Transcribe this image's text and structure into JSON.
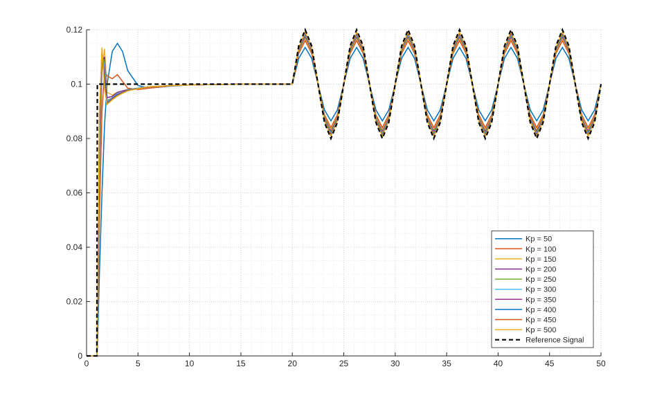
{
  "chart_data": {
    "type": "line",
    "x": [
      0,
      1,
      1.05,
      1.25,
      1.5,
      1.75,
      2,
      2.5,
      3,
      3.5,
      4,
      5,
      6,
      8,
      10,
      15,
      20,
      20.625,
      21.25,
      21.875,
      22.5,
      23.125,
      23.75,
      24.375,
      25,
      25.625,
      26.25,
      26.875,
      27.5,
      28.125,
      28.75,
      29.375,
      30,
      30.625,
      31.25,
      31.875,
      32.5,
      33.125,
      33.75,
      34.375,
      35,
      35.625,
      36.25,
      36.875,
      37.5,
      38.125,
      38.75,
      39.375,
      40,
      40.625,
      41.25,
      41.875,
      42.5,
      43.125,
      43.75,
      44.375,
      45,
      45.625,
      46.25,
      46.875,
      47.5,
      48.125,
      48.75,
      49.375,
      50
    ],
    "series": [
      {
        "name": "Kp = 50",
        "color": "#0072BD",
        "values": [
          0,
          0,
          0.002,
          0.03,
          0.06,
          0.085,
          0.1,
          0.112,
          0.115,
          0.112,
          0.105,
          0.0995,
          0.0985,
          0.0992,
          0.0997,
          0.1,
          0.1,
          0.1095,
          0.1135,
          0.1095,
          0.1,
          0.0905,
          0.0865,
          0.0905,
          0.1,
          0.1095,
          0.1135,
          0.1095,
          0.1,
          0.0905,
          0.0865,
          0.0905,
          0.1,
          0.1095,
          0.1135,
          0.1095,
          0.1,
          0.0905,
          0.0865,
          0.0905,
          0.1,
          0.1095,
          0.1135,
          0.1095,
          0.1,
          0.0905,
          0.0865,
          0.0905,
          0.1,
          0.1095,
          0.1135,
          0.1095,
          0.1,
          0.0905,
          0.0865,
          0.0905,
          0.1,
          0.1095,
          0.1135,
          0.1095,
          0.1,
          0.0905,
          0.0865,
          0.0905,
          0.1
        ]
      },
      {
        "name": "Kp = 100",
        "color": "#D95319",
        "values": [
          0,
          0,
          0.004,
          0.05,
          0.09,
          0.105,
          0.103,
          0.102,
          0.1035,
          0.101,
          0.0985,
          0.098,
          0.0985,
          0.0993,
          0.0997,
          0.1,
          0.1,
          0.1113,
          0.116,
          0.1113,
          0.1,
          0.0887,
          0.084,
          0.0887,
          0.1,
          0.1113,
          0.116,
          0.1113,
          0.1,
          0.0887,
          0.084,
          0.0887,
          0.1,
          0.1113,
          0.116,
          0.1113,
          0.1,
          0.0887,
          0.084,
          0.0887,
          0.1,
          0.1113,
          0.116,
          0.1113,
          0.1,
          0.0887,
          0.084,
          0.0887,
          0.1,
          0.1113,
          0.116,
          0.1113,
          0.1,
          0.0887,
          0.084,
          0.0887,
          0.1,
          0.1113,
          0.116,
          0.1113,
          0.1,
          0.0887,
          0.084,
          0.0887,
          0.1
        ]
      },
      {
        "name": "Kp = 150",
        "color": "#EDB120",
        "values": [
          0,
          0,
          0.006,
          0.065,
          0.105,
          0.113,
          0.097,
          0.096,
          0.097,
          0.0975,
          0.098,
          0.0985,
          0.099,
          0.0994,
          0.0997,
          0.1,
          0.1,
          0.112,
          0.117,
          0.112,
          0.1,
          0.088,
          0.083,
          0.088,
          0.1,
          0.112,
          0.117,
          0.112,
          0.1,
          0.088,
          0.083,
          0.088,
          0.1,
          0.112,
          0.117,
          0.112,
          0.1,
          0.088,
          0.083,
          0.088,
          0.1,
          0.112,
          0.117,
          0.112,
          0.1,
          0.088,
          0.083,
          0.088,
          0.1,
          0.112,
          0.117,
          0.112,
          0.1,
          0.088,
          0.083,
          0.088,
          0.1,
          0.112,
          0.117,
          0.112,
          0.1,
          0.088,
          0.083,
          0.088,
          0.1
        ]
      },
      {
        "name": "Kp = 200",
        "color": "#7E2F8E",
        "values": [
          0,
          0,
          0.007,
          0.07,
          0.108,
          0.11,
          0.095,
          0.0955,
          0.097,
          0.0975,
          0.098,
          0.0985,
          0.099,
          0.0994,
          0.0997,
          0.1,
          0.1,
          0.1124,
          0.1175,
          0.1124,
          0.1,
          0.0876,
          0.0825,
          0.0876,
          0.1,
          0.1124,
          0.1175,
          0.1124,
          0.1,
          0.0876,
          0.0825,
          0.0876,
          0.1,
          0.1124,
          0.1175,
          0.1124,
          0.1,
          0.0876,
          0.0825,
          0.0876,
          0.1,
          0.1124,
          0.1175,
          0.1124,
          0.1,
          0.0876,
          0.0825,
          0.0876,
          0.1,
          0.1124,
          0.1175,
          0.1124,
          0.1,
          0.0876,
          0.0825,
          0.0876,
          0.1,
          0.1124,
          0.1175,
          0.1124,
          0.1,
          0.0876,
          0.0825,
          0.0876,
          0.1
        ]
      },
      {
        "name": "Kp = 250",
        "color": "#77AC30",
        "values": [
          0,
          0,
          0.008,
          0.075,
          0.11,
          0.108,
          0.094,
          0.095,
          0.0965,
          0.097,
          0.098,
          0.0985,
          0.099,
          0.0994,
          0.0997,
          0.1,
          0.1,
          0.1127,
          0.118,
          0.1127,
          0.1,
          0.0873,
          0.082,
          0.0873,
          0.1,
          0.1127,
          0.118,
          0.1127,
          0.1,
          0.0873,
          0.082,
          0.0873,
          0.1,
          0.1127,
          0.118,
          0.1127,
          0.1,
          0.0873,
          0.082,
          0.0873,
          0.1,
          0.1127,
          0.118,
          0.1127,
          0.1,
          0.0873,
          0.082,
          0.0873,
          0.1,
          0.1127,
          0.118,
          0.1127,
          0.1,
          0.0873,
          0.082,
          0.0873,
          0.1,
          0.1127,
          0.118,
          0.1127,
          0.1,
          0.0873,
          0.082,
          0.0873,
          0.1
        ]
      },
      {
        "name": "Kp = 300",
        "color": "#4DBEEE",
        "values": [
          0,
          0,
          0.009,
          0.08,
          0.111,
          0.106,
          0.0935,
          0.095,
          0.0965,
          0.097,
          0.0978,
          0.0985,
          0.099,
          0.0994,
          0.0997,
          0.1,
          0.1,
          0.1129,
          0.1183,
          0.1129,
          0.1,
          0.0871,
          0.0817,
          0.0871,
          0.1,
          0.1129,
          0.1183,
          0.1129,
          0.1,
          0.0871,
          0.0817,
          0.0871,
          0.1,
          0.1129,
          0.1183,
          0.1129,
          0.1,
          0.0871,
          0.0817,
          0.0871,
          0.1,
          0.1129,
          0.1183,
          0.1129,
          0.1,
          0.0871,
          0.0817,
          0.0871,
          0.1,
          0.1129,
          0.1183,
          0.1129,
          0.1,
          0.0871,
          0.0817,
          0.0871,
          0.1,
          0.1129,
          0.1183,
          0.1129,
          0.1,
          0.0871,
          0.0817,
          0.0871,
          0.1
        ]
      },
      {
        "name": "Kp = 350",
        "color": "#A22C9C",
        "values": [
          0,
          0,
          0.01,
          0.083,
          0.112,
          0.104,
          0.093,
          0.0948,
          0.0962,
          0.097,
          0.0978,
          0.0984,
          0.099,
          0.0994,
          0.0997,
          0.1,
          0.1,
          0.1132,
          0.1186,
          0.1132,
          0.1,
          0.0868,
          0.0814,
          0.0868,
          0.1,
          0.1132,
          0.1186,
          0.1132,
          0.1,
          0.0868,
          0.0814,
          0.0868,
          0.1,
          0.1132,
          0.1186,
          0.1132,
          0.1,
          0.0868,
          0.0814,
          0.0868,
          0.1,
          0.1132,
          0.1186,
          0.1132,
          0.1,
          0.0868,
          0.0814,
          0.0868,
          0.1,
          0.1132,
          0.1186,
          0.1132,
          0.1,
          0.0868,
          0.0814,
          0.0868,
          0.1,
          0.1132,
          0.1186,
          0.1132,
          0.1,
          0.0868,
          0.0814,
          0.0868,
          0.1
        ]
      },
      {
        "name": "Kp = 400",
        "color": "#0072BD",
        "values": [
          0,
          0,
          0.011,
          0.086,
          0.112,
          0.102,
          0.0928,
          0.0946,
          0.096,
          0.0968,
          0.0977,
          0.0984,
          0.099,
          0.0994,
          0.0997,
          0.1,
          0.1,
          0.1133,
          0.1188,
          0.1133,
          0.1,
          0.0867,
          0.0812,
          0.0867,
          0.1,
          0.1133,
          0.1188,
          0.1133,
          0.1,
          0.0867,
          0.0812,
          0.0867,
          0.1,
          0.1133,
          0.1188,
          0.1133,
          0.1,
          0.0867,
          0.0812,
          0.0867,
          0.1,
          0.1133,
          0.1188,
          0.1133,
          0.1,
          0.0867,
          0.0812,
          0.0867,
          0.1,
          0.1133,
          0.1188,
          0.1133,
          0.1,
          0.0867,
          0.0812,
          0.0867,
          0.1,
          0.1133,
          0.1188,
          0.1133,
          0.1,
          0.0867,
          0.0812,
          0.0867,
          0.1
        ]
      },
      {
        "name": "Kp = 450",
        "color": "#D95319",
        "values": [
          0,
          0,
          0.012,
          0.088,
          0.113,
          0.1,
          0.0926,
          0.0944,
          0.0958,
          0.0967,
          0.0976,
          0.0983,
          0.099,
          0.0994,
          0.0997,
          0.1,
          0.1,
          0.1134,
          0.119,
          0.1134,
          0.1,
          0.0866,
          0.081,
          0.0866,
          0.1,
          0.1134,
          0.119,
          0.1134,
          0.1,
          0.0866,
          0.081,
          0.0866,
          0.1,
          0.1134,
          0.119,
          0.1134,
          0.1,
          0.0866,
          0.081,
          0.0866,
          0.1,
          0.1134,
          0.119,
          0.1134,
          0.1,
          0.0866,
          0.081,
          0.0866,
          0.1,
          0.1134,
          0.119,
          0.1134,
          0.1,
          0.0866,
          0.081,
          0.0866,
          0.1,
          0.1134,
          0.119,
          0.1134,
          0.1,
          0.0866,
          0.081,
          0.0866,
          0.1
        ]
      },
      {
        "name": "Kp = 500",
        "color": "#EDB120",
        "values": [
          0,
          0,
          0.013,
          0.09,
          0.1135,
          0.098,
          0.0925,
          0.0942,
          0.0956,
          0.0966,
          0.0975,
          0.0983,
          0.099,
          0.0994,
          0.0997,
          0.1,
          0.1,
          0.1136,
          0.1192,
          0.1136,
          0.1,
          0.0864,
          0.0808,
          0.0864,
          0.1,
          0.1136,
          0.1192,
          0.1136,
          0.1,
          0.0864,
          0.0808,
          0.0864,
          0.1,
          0.1136,
          0.1192,
          0.1136,
          0.1,
          0.0864,
          0.0808,
          0.0864,
          0.1,
          0.1136,
          0.1192,
          0.1136,
          0.1,
          0.0864,
          0.0808,
          0.0864,
          0.1,
          0.1136,
          0.1192,
          0.1136,
          0.1,
          0.0864,
          0.0808,
          0.0864,
          0.1,
          0.1136,
          0.1192,
          0.1136,
          0.1,
          0.0864,
          0.0808,
          0.0864,
          0.1
        ]
      },
      {
        "name": "Reference Signal",
        "color": "#000000",
        "dashed": true,
        "values": [
          0,
          0,
          0.1,
          0.1,
          0.1,
          0.1,
          0.1,
          0.1,
          0.1,
          0.1,
          0.1,
          0.1,
          0.1,
          0.1,
          0.1,
          0.1,
          0.1,
          0.1141,
          0.12,
          0.1141,
          0.1,
          0.0859,
          0.08,
          0.0859,
          0.1,
          0.1141,
          0.12,
          0.1141,
          0.1,
          0.0859,
          0.08,
          0.0859,
          0.1,
          0.1141,
          0.12,
          0.1141,
          0.1,
          0.0859,
          0.08,
          0.0859,
          0.1,
          0.1141,
          0.12,
          0.1141,
          0.1,
          0.0859,
          0.08,
          0.0859,
          0.1,
          0.1141,
          0.12,
          0.1141,
          0.1,
          0.0859,
          0.08,
          0.0859,
          0.1,
          0.1141,
          0.12,
          0.1141,
          0.1,
          0.0859,
          0.08,
          0.0859,
          0.1
        ]
      }
    ],
    "xlim": [
      0,
      50
    ],
    "xticks": [
      0,
      5,
      10,
      15,
      20,
      25,
      30,
      35,
      40,
      45,
      50
    ],
    "ylim": [
      0,
      0.12
    ],
    "yticks": [
      0,
      0.02,
      0.04,
      0.06,
      0.08,
      0.1,
      0.12
    ],
    "grid": true,
    "minor_grid": true,
    "legend": "southeast"
  }
}
